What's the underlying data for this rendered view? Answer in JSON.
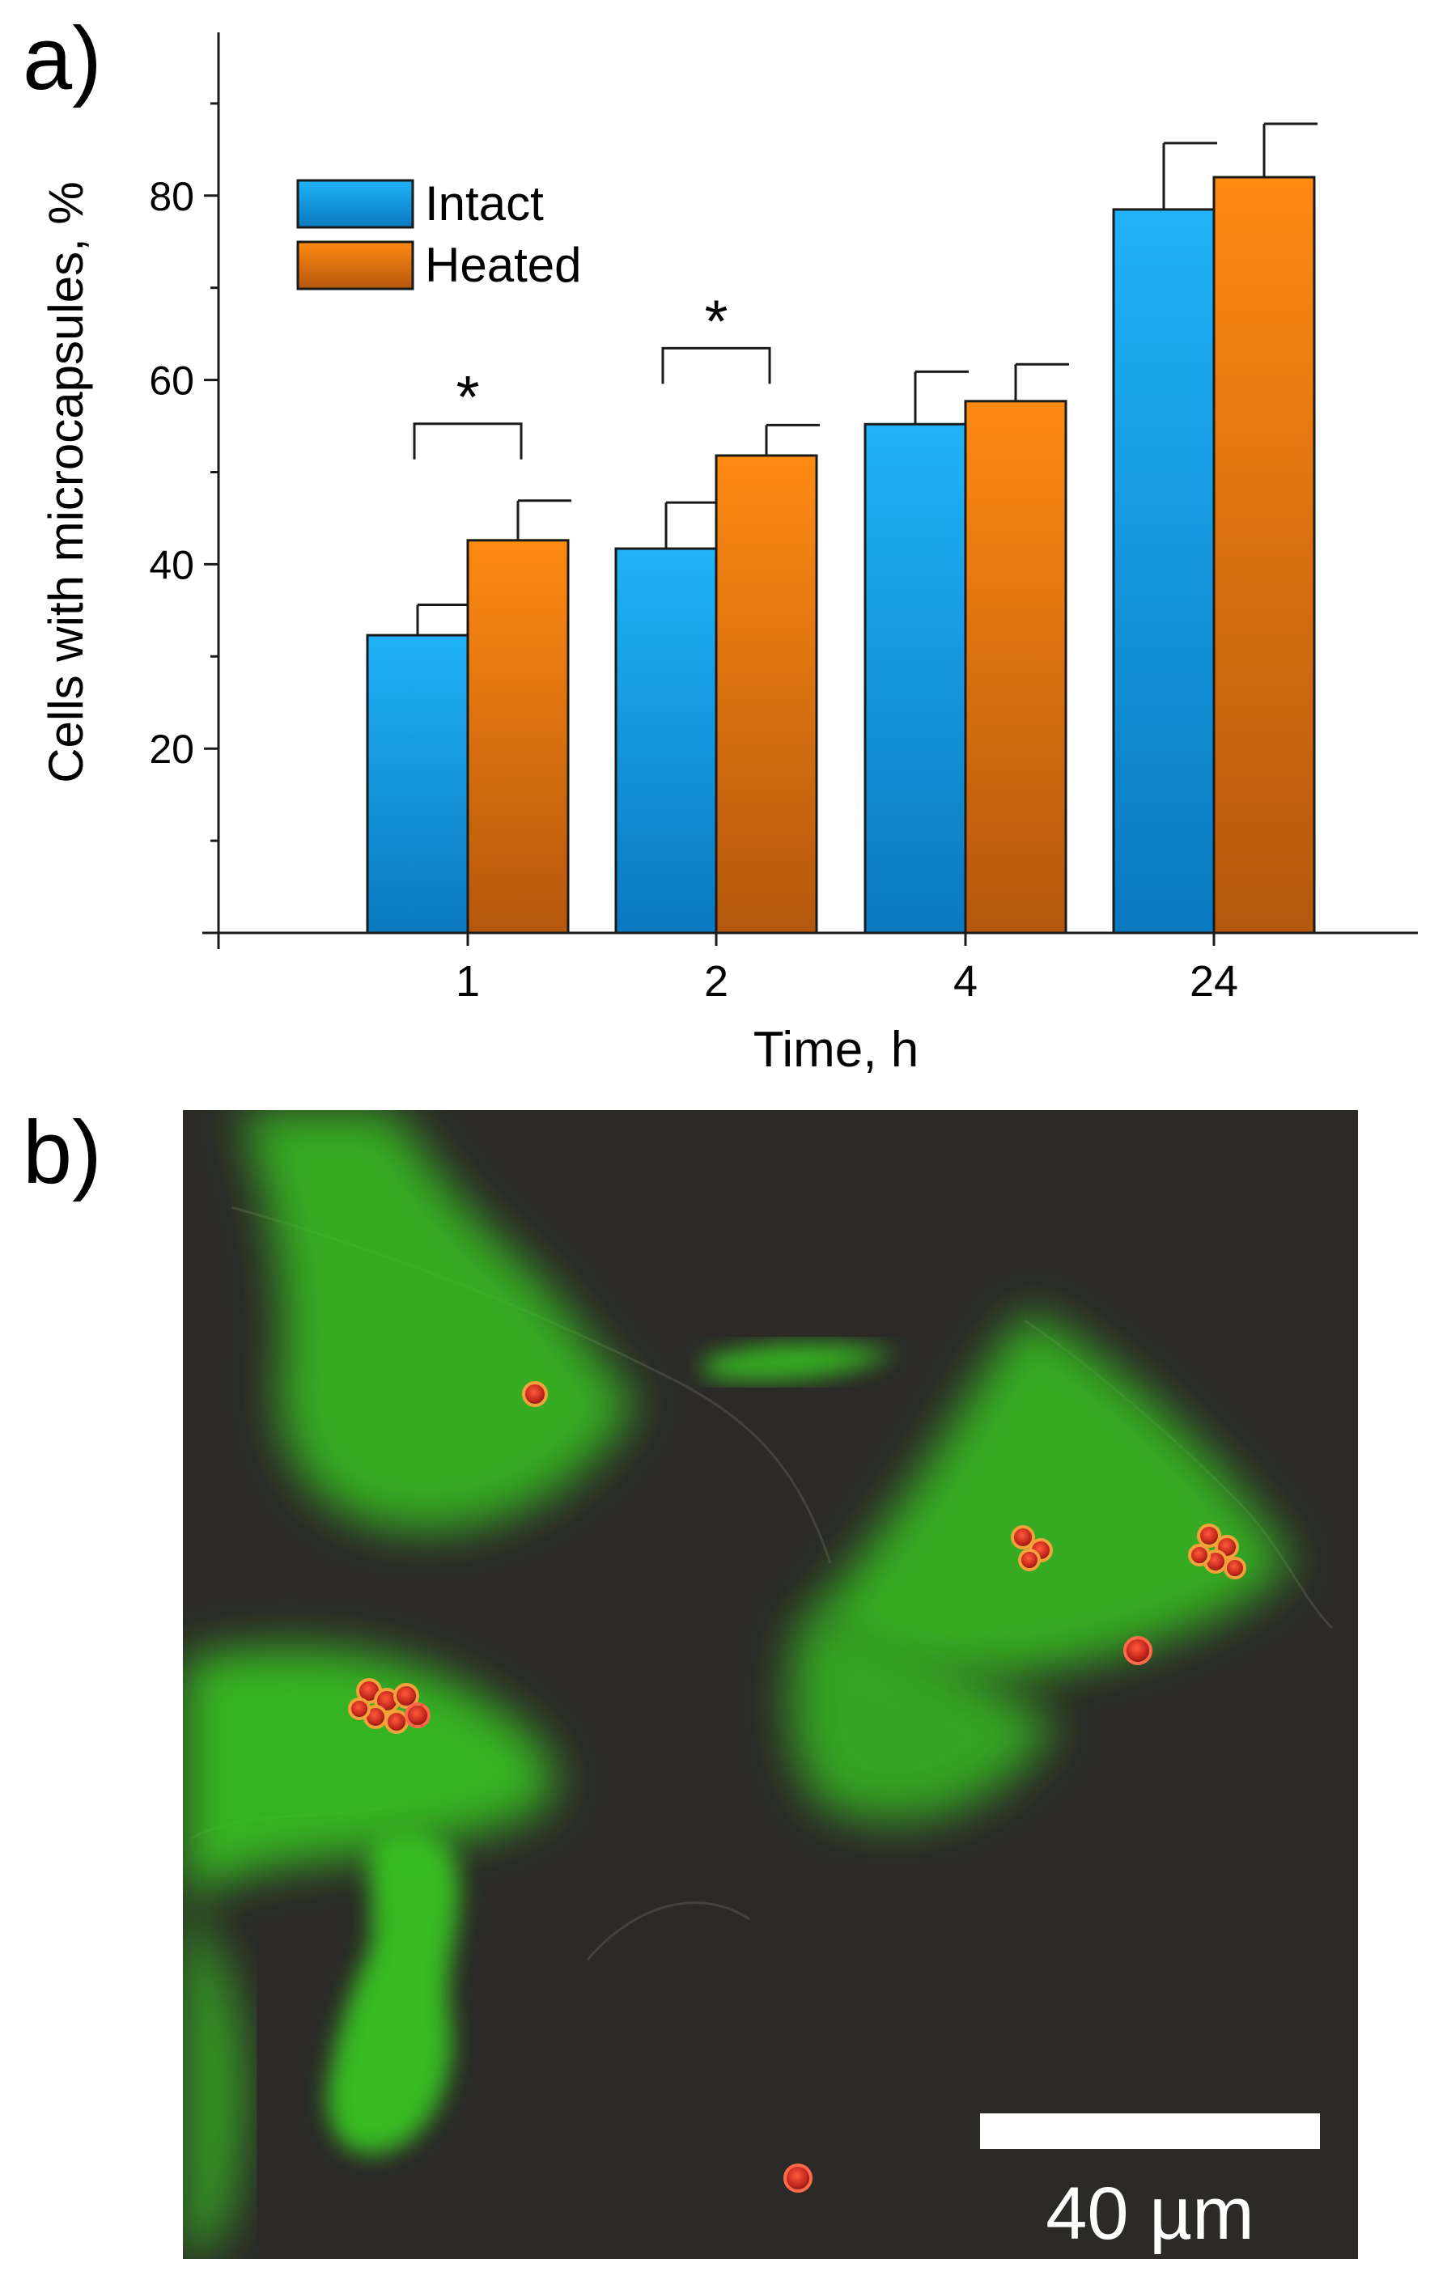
{
  "panels": {
    "a_label": "a)",
    "b_label": "b)"
  },
  "chart_data": {
    "type": "bar",
    "title": "",
    "xlabel": "Time, h",
    "ylabel": "Cells with microcapsules, %",
    "categories": [
      "1",
      "2",
      "4",
      "24"
    ],
    "ylim": [
      0,
      100
    ],
    "yticks": [
      20,
      40,
      60,
      80
    ],
    "grid": false,
    "legend_position": "top-left",
    "series": [
      {
        "name": "Intact",
        "color": "#1aa0e6",
        "values": [
          32.3,
          41.7,
          55.2,
          78.5
        ],
        "errors": [
          3.3,
          5.0,
          5.7,
          7.2
        ]
      },
      {
        "name": "Heated",
        "color": "#f07e14",
        "values": [
          42.6,
          51.8,
          57.7,
          82.0
        ],
        "errors": [
          4.3,
          3.3,
          4.0,
          5.8
        ]
      }
    ],
    "significance": [
      {
        "category_index": 0,
        "label": "*"
      },
      {
        "category_index": 1,
        "label": "*"
      }
    ]
  },
  "micrograph": {
    "scale_bar_label": "40 µm",
    "colors": {
      "background": "#2a2926",
      "cytoplasm": "#3ecb2a",
      "capsule": "#d8261c"
    }
  }
}
